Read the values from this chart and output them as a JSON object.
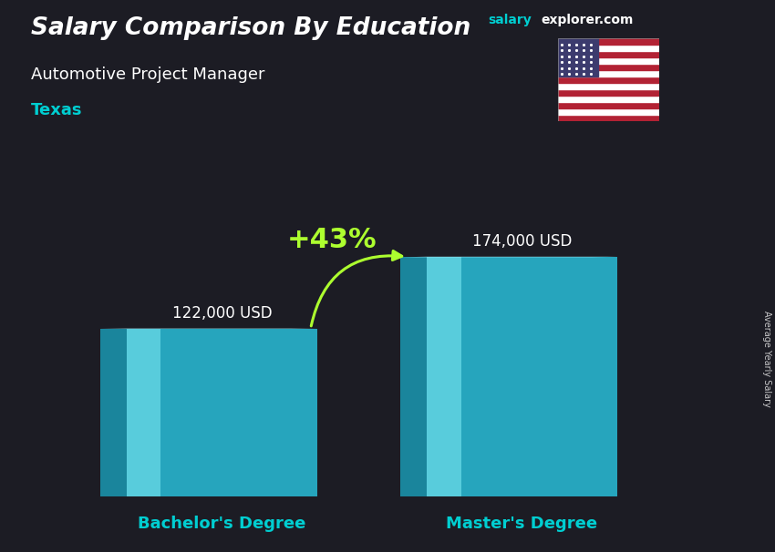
{
  "title_main": "Salary Comparison By Education",
  "title_salary": "salary",
  "title_explorer": "explorer.com",
  "subtitle": "Automotive Project Manager",
  "location": "Texas",
  "categories": [
    "Bachelor's Degree",
    "Master's Degree"
  ],
  "values": [
    122000,
    174000
  ],
  "value_labels": [
    "122,000 USD",
    "174,000 USD"
  ],
  "pct_change": "+43%",
  "bar_color_main": "#29C4E0",
  "bar_color_left": "#1A9DB8",
  "bar_color_highlight": "#7EEAF5",
  "bar_color_top_light": "#A8EEF8",
  "bar_color_top_dark": "#1A9DB8",
  "bg_color": "#1a1a2a",
  "title_color": "#FFFFFF",
  "subtitle_color": "#FFFFFF",
  "location_color": "#00CED1",
  "xlabel_color": "#00CED1",
  "value_label_color": "#FFFFFF",
  "pct_color": "#ADFF2F",
  "arrow_color": "#ADFF2F",
  "salary_color": "#00CED1",
  "explorer_color": "#FFFFFF",
  "side_label": "Average Yearly Salary",
  "ylim": [
    0,
    220000
  ],
  "bar_width": 0.28,
  "bar_alpha": 0.82
}
